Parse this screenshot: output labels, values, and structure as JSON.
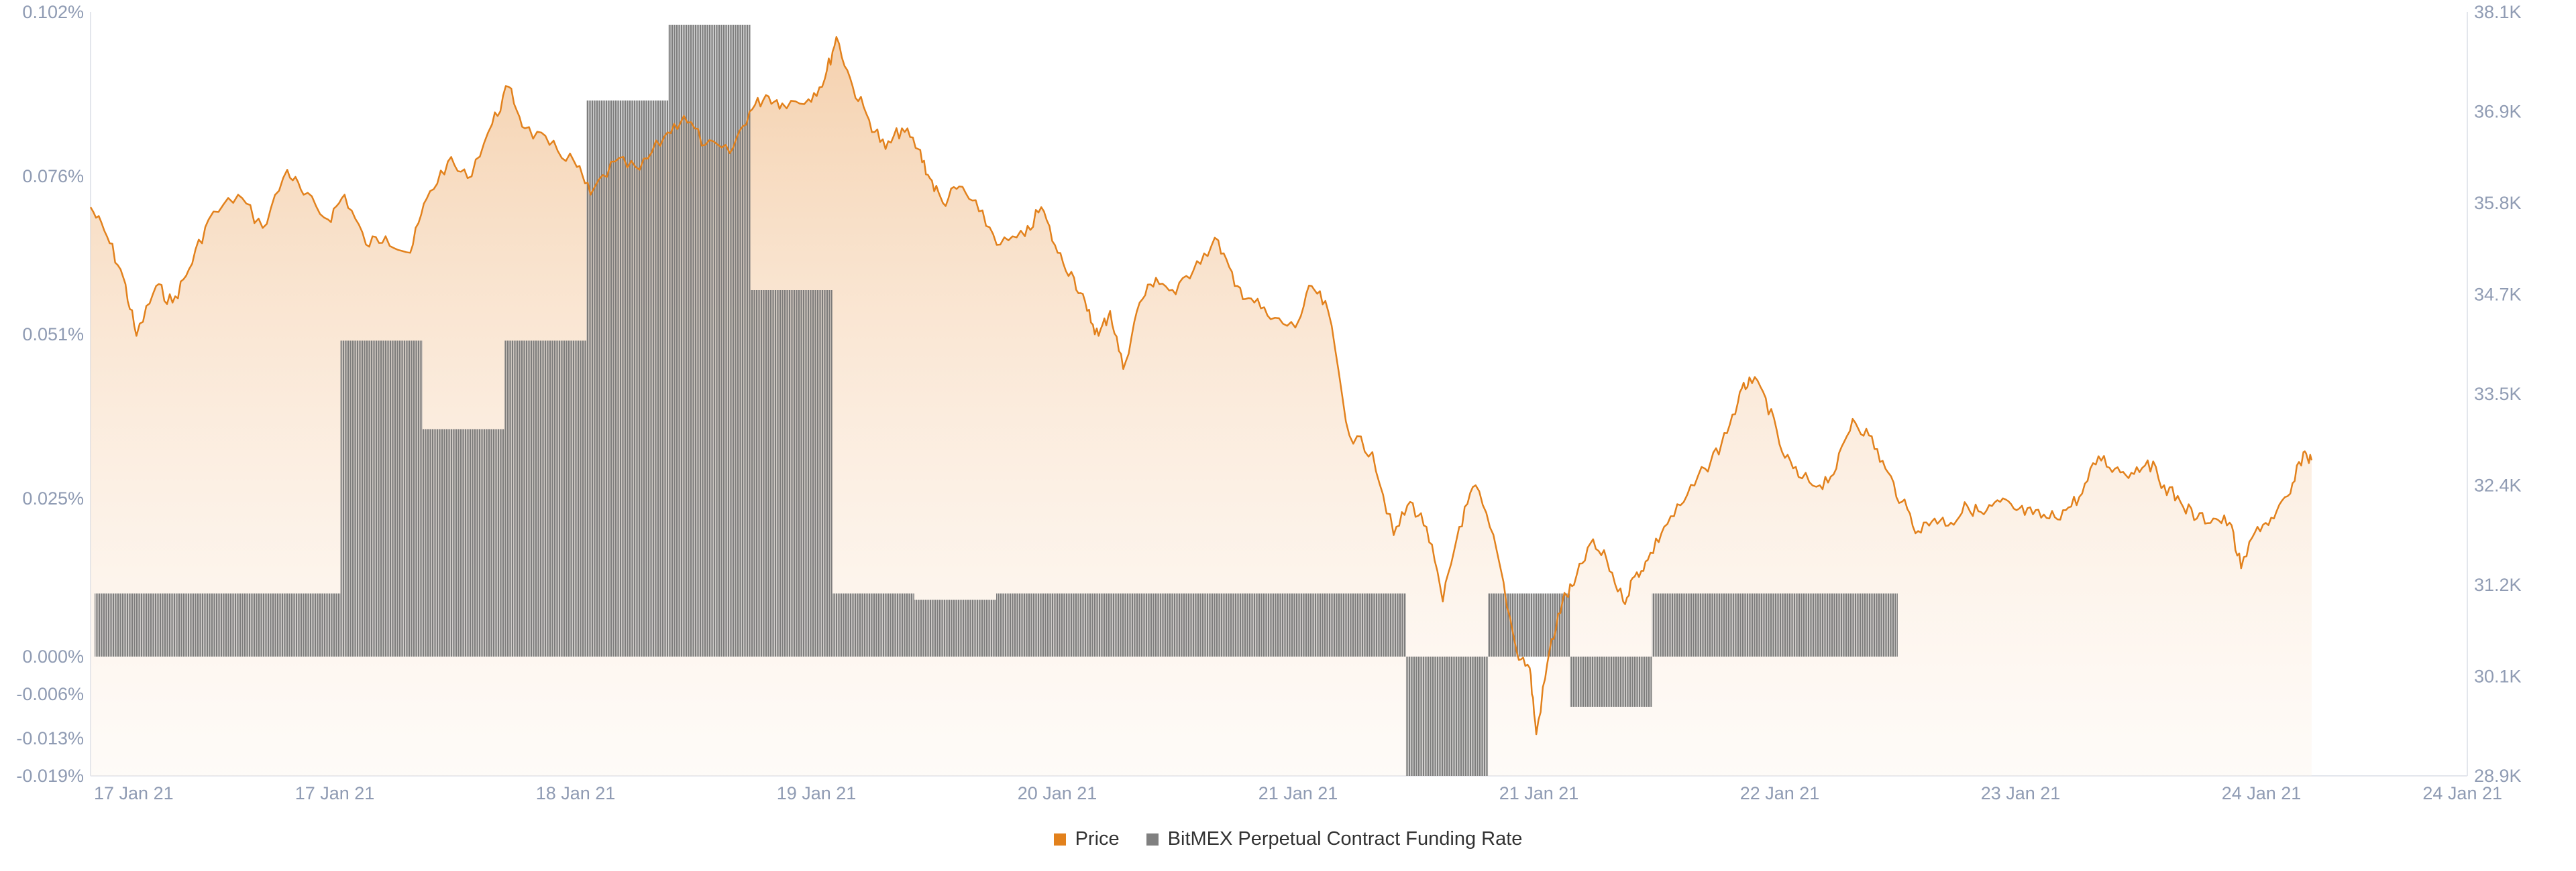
{
  "chart_data": {
    "type": "bar+line",
    "x_tick_labels": [
      "17 Jan 21",
      "17 Jan 21",
      "18 Jan 21",
      "19 Jan 21",
      "20 Jan 21",
      "21 Jan 21",
      "21 Jan 21",
      "22 Jan 21",
      "23 Jan 21",
      "24 Jan 21",
      "24 Jan 21"
    ],
    "left_axis": {
      "tick_labels": [
        "0.102%",
        "0.076%",
        "0.051%",
        "0.025%",
        "0.000%",
        "-0.006%",
        "-0.013%",
        "-0.019%"
      ],
      "tick_values": [
        0.102,
        0.076,
        0.051,
        0.025,
        0.0,
        -0.006,
        -0.013,
        -0.019
      ],
      "ylim": [
        -0.019,
        0.102
      ]
    },
    "right_axis": {
      "tick_labels": [
        "38.1K",
        "36.9K",
        "35.8K",
        "34.7K",
        "33.5K",
        "32.4K",
        "31.2K",
        "30.1K",
        "28.9K"
      ],
      "tick_values": [
        38.1,
        36.9,
        35.8,
        34.7,
        33.5,
        32.4,
        31.2,
        30.1,
        28.9
      ],
      "ylim": [
        28.9,
        38.1
      ]
    },
    "legend": [
      "Price",
      "BitMEX Perpetual Contract Funding Rate"
    ],
    "colors": {
      "price": "#e2811c",
      "funding": "#808080",
      "axis_text": "#8f9bb3"
    },
    "funding_rate": {
      "name": "BitMEX Perpetual Contract Funding Rate",
      "unit": "%",
      "x_start": 0.025,
      "x_step": 0.5,
      "values": [
        0.01,
        0.01,
        0.01,
        0.05,
        0.036,
        0.05,
        0.088,
        0.1,
        0.058,
        0.01,
        0.009,
        0.01,
        0.01,
        0.01,
        0.01,
        0.01,
        -0.019,
        0.01,
        -0.008,
        0.01,
        0.01,
        0.01
      ]
    },
    "price": {
      "name": "Price",
      "unit": "K USD",
      "points": [
        [
          0.0,
          35.75
        ],
        [
          0.1,
          35.4
        ],
        [
          0.2,
          34.9
        ],
        [
          0.28,
          34.2
        ],
        [
          0.4,
          34.8
        ],
        [
          0.5,
          34.6
        ],
        [
          0.6,
          35.0
        ],
        [
          0.72,
          35.6
        ],
        [
          0.9,
          35.9
        ],
        [
          1.05,
          35.5
        ],
        [
          1.2,
          36.2
        ],
        [
          1.3,
          35.9
        ],
        [
          1.45,
          35.6
        ],
        [
          1.55,
          35.9
        ],
        [
          1.68,
          35.3
        ],
        [
          1.8,
          35.4
        ],
        [
          1.95,
          35.2
        ],
        [
          2.05,
          35.85
        ],
        [
          2.18,
          36.3
        ],
        [
          2.3,
          36.1
        ],
        [
          2.45,
          36.75
        ],
        [
          2.55,
          37.2
        ],
        [
          2.65,
          36.7
        ],
        [
          2.8,
          36.5
        ],
        [
          2.95,
          36.3
        ],
        [
          3.05,
          35.9
        ],
        [
          3.2,
          36.3
        ],
        [
          3.35,
          36.2
        ],
        [
          3.5,
          36.6
        ],
        [
          3.62,
          36.85
        ],
        [
          3.75,
          36.5
        ],
        [
          3.9,
          36.4
        ],
        [
          4.02,
          36.9
        ],
        [
          4.12,
          37.1
        ],
        [
          4.22,
          37.0
        ],
        [
          4.38,
          37.05
        ],
        [
          4.48,
          37.3
        ],
        [
          4.55,
          37.8
        ],
        [
          4.65,
          37.2
        ],
        [
          4.75,
          36.8
        ],
        [
          4.85,
          36.45
        ],
        [
          4.95,
          36.7
        ],
        [
          5.05,
          36.45
        ],
        [
          5.12,
          36.1
        ],
        [
          5.2,
          35.8
        ],
        [
          5.3,
          36.0
        ],
        [
          5.42,
          35.7
        ],
        [
          5.55,
          35.3
        ],
        [
          5.7,
          35.4
        ],
        [
          5.8,
          35.75
        ],
        [
          5.9,
          35.2
        ],
        [
          6.0,
          34.9
        ],
        [
          6.08,
          34.5
        ],
        [
          6.15,
          34.2
        ],
        [
          6.22,
          34.5
        ],
        [
          6.3,
          33.8
        ],
        [
          6.4,
          34.6
        ],
        [
          6.5,
          34.9
        ],
        [
          6.62,
          34.7
        ],
        [
          6.75,
          35.1
        ],
        [
          6.88,
          35.35
        ],
        [
          6.98,
          34.8
        ],
        [
          7.08,
          34.65
        ],
        [
          7.2,
          34.4
        ],
        [
          7.35,
          34.3
        ],
        [
          7.45,
          34.8
        ],
        [
          7.55,
          34.5
        ],
        [
          7.68,
          33.0
        ],
        [
          7.82,
          32.8
        ],
        [
          7.95,
          31.8
        ],
        [
          8.05,
          32.2
        ],
        [
          8.15,
          31.9
        ],
        [
          8.25,
          31.0
        ],
        [
          8.35,
          31.9
        ],
        [
          8.45,
          32.4
        ],
        [
          8.58,
          31.6
        ],
        [
          8.7,
          30.4
        ],
        [
          8.78,
          30.2
        ],
        [
          8.82,
          29.4
        ],
        [
          8.9,
          30.4
        ],
        [
          8.98,
          31.0
        ],
        [
          9.05,
          31.2
        ],
        [
          9.15,
          31.7
        ],
        [
          9.25,
          31.5
        ],
        [
          9.35,
          31.0
        ],
        [
          9.42,
          31.3
        ],
        [
          9.5,
          31.5
        ],
        [
          9.6,
          31.9
        ],
        [
          9.72,
          32.2
        ],
        [
          9.85,
          32.6
        ],
        [
          9.95,
          32.9
        ],
        [
          10.05,
          33.4
        ],
        [
          10.12,
          33.7
        ],
        [
          10.22,
          33.45
        ],
        [
          10.32,
          32.8
        ],
        [
          10.42,
          32.5
        ],
        [
          10.55,
          32.4
        ],
        [
          10.65,
          32.6
        ],
        [
          10.75,
          33.2
        ],
        [
          10.85,
          33.0
        ],
        [
          10.95,
          32.6
        ],
        [
          11.05,
          32.2
        ],
        [
          11.15,
          31.85
        ],
        [
          11.25,
          32.0
        ],
        [
          11.35,
          31.95
        ],
        [
          11.45,
          32.15
        ],
        [
          11.55,
          32.05
        ],
        [
          11.65,
          32.2
        ],
        [
          11.75,
          32.1
        ],
        [
          11.85,
          32.05
        ],
        [
          11.95,
          32.0
        ],
        [
          12.05,
          32.1
        ],
        [
          12.15,
          32.3
        ],
        [
          12.25,
          32.75
        ],
        [
          12.35,
          32.6
        ],
        [
          12.45,
          32.55
        ],
        [
          12.55,
          32.7
        ],
        [
          12.65,
          32.4
        ],
        [
          12.75,
          32.2
        ],
        [
          12.85,
          32.0
        ],
        [
          12.95,
          32.0
        ],
        [
          13.05,
          31.95
        ],
        [
          13.12,
          31.4
        ],
        [
          13.22,
          31.9
        ],
        [
          13.32,
          32.0
        ],
        [
          13.42,
          32.3
        ],
        [
          13.5,
          32.8
        ],
        [
          13.55,
          32.7
        ]
      ]
    }
  }
}
